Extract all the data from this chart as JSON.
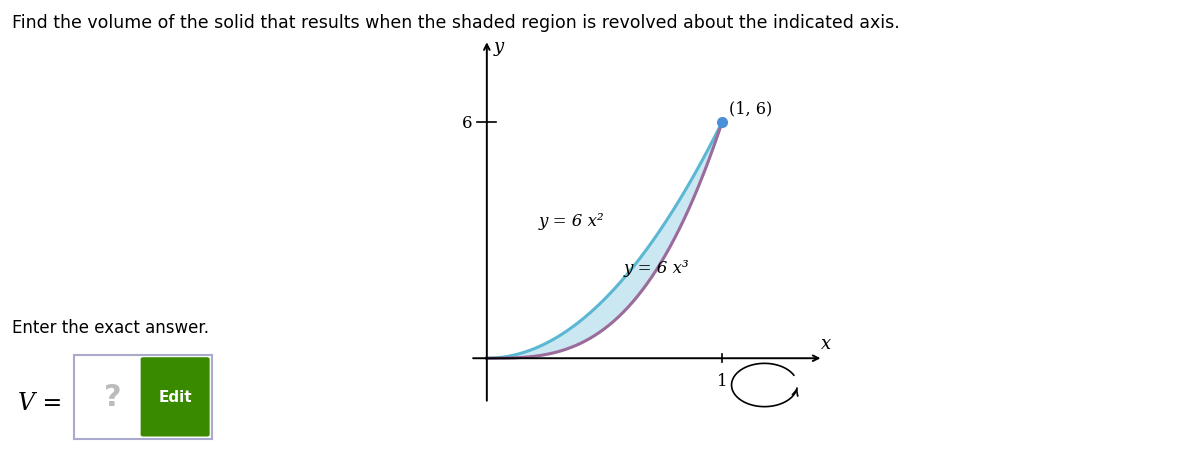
{
  "title": "Find the volume of the solid that results when the shaded region is revolved about the indicated axis.",
  "title_fontsize": 12.5,
  "curve1_label": "y = 6 x²",
  "curve2_label": "y = 6 x³",
  "point_label": "(1, 6)",
  "x_label": "x",
  "y_label": "y",
  "y_tick_label": "6",
  "x_tick_label": "1",
  "color_curve1": "#5bb8d4",
  "color_curve2": "#9b6b9b",
  "color_fill": "#a8d8ea",
  "color_point": "#4a90d9",
  "bg_color": "#ffffff",
  "enter_text": "Enter the exact answer.",
  "v_label": "V =",
  "edit_button_color": "#3a8a00",
  "edit_button_text": "Edit",
  "question_mark_color": "#bbbbbb",
  "xlim": [
    -0.08,
    1.45
  ],
  "ylim": [
    -1.3,
    8.2
  ]
}
